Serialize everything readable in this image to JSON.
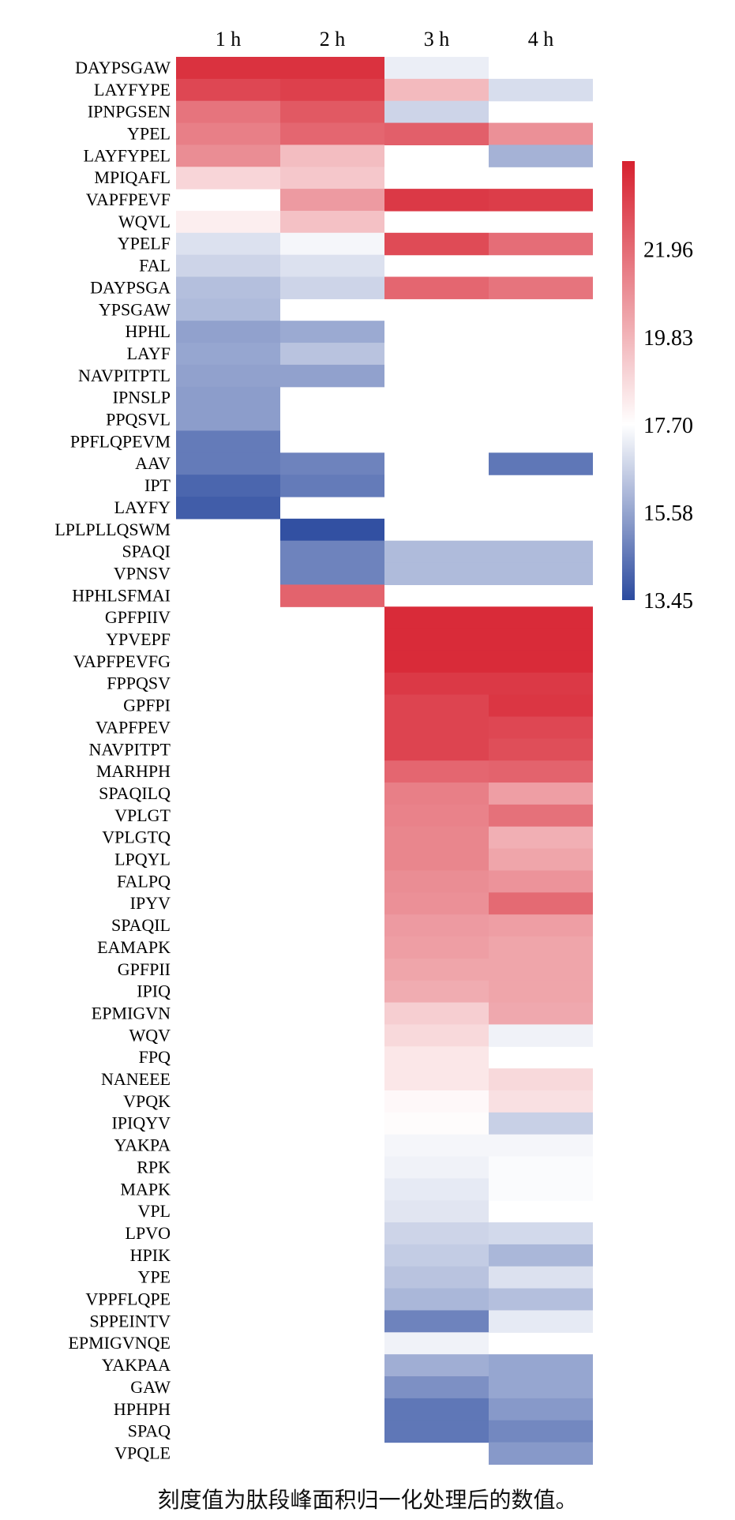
{
  "chart_data": {
    "type": "heatmap",
    "columns": [
      "1 h",
      "2 h",
      "3 h",
      "4 h"
    ],
    "rows": [
      "DAYPSGAW",
      "LAYFYPE",
      "IPNPGSEN",
      "YPEL",
      "LAYFYPEL",
      "MPIQAFL",
      "VAPFPEVF",
      "WQVL",
      "YPELF",
      "FAL",
      "DAYPSGA",
      "YPSGAW",
      "HPHL",
      "LAYF",
      "NAVPITPTL",
      "IPNSLP",
      "PPQSVL",
      "PPFLQPEVM",
      "AAV",
      "IPT",
      "LAYFY",
      "LPLPLLQSWM",
      "SPAQI",
      "VPNSV",
      "HPHLSFMAI",
      "GPFPIIV",
      "YPVEPF",
      "VAPFPEVFG",
      "FPPQSV",
      "GPFPI",
      "VAPFPEV",
      "NAVPITPT",
      "MARHPH",
      "SPAQILQ",
      "VPLGT",
      "VPLGTQ",
      "LPQYL",
      "FALPQ",
      "IPYV",
      "SPAQIL",
      "EAMAPK",
      "GPFPII",
      "IPIQ",
      "EPMIGVN",
      "WQV",
      "FPQ",
      "NANEEE",
      "VPQK",
      "IPIQYV",
      "YAKPA",
      "RPK",
      "MAPK",
      "VPL",
      "LPVO",
      "HPIK",
      "YPE",
      "VPPFLQPE",
      "SPPEINTV",
      "EPMIGVNQE",
      "YAKPAA",
      "GAW",
      "HPHPH",
      "SPAQ",
      "VPQLE"
    ],
    "values": [
      [
        23.6,
        23.6,
        17.3,
        null
      ],
      [
        23.0,
        23.2,
        19.7,
        16.9
      ],
      [
        21.7,
        22.5,
        16.7,
        null
      ],
      [
        21.4,
        22.1,
        22.3,
        20.9
      ],
      [
        21.0,
        19.6,
        null,
        15.9
      ],
      [
        18.9,
        19.3,
        null,
        null
      ],
      [
        null,
        20.6,
        23.4,
        23.3
      ],
      [
        18.2,
        19.5,
        null,
        null
      ],
      [
        17.0,
        17.5,
        22.9,
        21.9
      ],
      [
        16.7,
        17.0,
        null,
        null
      ],
      [
        16.2,
        16.7,
        22.1,
        21.7
      ],
      [
        16.1,
        null,
        null,
        null
      ],
      [
        15.5,
        15.7,
        null,
        null
      ],
      [
        15.6,
        16.3,
        null,
        null
      ],
      [
        15.5,
        15.5,
        null,
        null
      ],
      [
        15.4,
        null,
        null,
        null
      ],
      [
        15.4,
        null,
        null,
        null
      ],
      [
        14.6,
        null,
        null,
        null
      ],
      [
        14.6,
        14.8,
        null,
        14.5
      ],
      [
        14.1,
        14.6,
        null,
        null
      ],
      [
        13.9,
        null,
        null,
        null
      ],
      [
        null,
        13.6,
        null,
        null
      ],
      [
        null,
        14.8,
        16.1,
        16.1
      ],
      [
        null,
        14.8,
        16.1,
        16.1
      ],
      [
        null,
        22.2,
        null,
        null
      ],
      [
        null,
        null,
        23.8,
        23.8
      ],
      [
        null,
        null,
        23.8,
        23.8
      ],
      [
        null,
        null,
        23.8,
        23.8
      ],
      [
        null,
        null,
        23.4,
        23.4
      ],
      [
        null,
        null,
        23.1,
        23.5
      ],
      [
        null,
        null,
        23.1,
        23.0
      ],
      [
        null,
        null,
        23.1,
        22.8
      ],
      [
        null,
        null,
        22.1,
        22.2
      ],
      [
        null,
        null,
        21.4,
        20.5
      ],
      [
        null,
        null,
        21.3,
        21.8
      ],
      [
        null,
        null,
        21.2,
        20.0
      ],
      [
        null,
        null,
        21.2,
        20.3
      ],
      [
        null,
        null,
        21.0,
        20.8
      ],
      [
        null,
        null,
        20.9,
        22.0
      ],
      [
        null,
        null,
        20.6,
        20.5
      ],
      [
        null,
        null,
        20.5,
        20.3
      ],
      [
        null,
        null,
        20.3,
        20.3
      ],
      [
        null,
        null,
        20.1,
        20.3
      ],
      [
        null,
        null,
        19.1,
        20.2
      ],
      [
        null,
        null,
        18.8,
        17.4
      ],
      [
        null,
        null,
        18.4,
        null
      ],
      [
        null,
        null,
        18.4,
        18.8
      ],
      [
        null,
        null,
        17.9,
        18.6
      ],
      [
        null,
        null,
        17.8,
        16.6
      ],
      [
        null,
        null,
        17.5,
        17.5
      ],
      [
        null,
        null,
        17.4,
        17.6
      ],
      [
        null,
        null,
        17.2,
        17.6
      ],
      [
        null,
        null,
        17.1,
        null
      ],
      [
        null,
        null,
        16.7,
        16.8
      ],
      [
        null,
        null,
        16.5,
        16.0
      ],
      [
        null,
        null,
        16.3,
        17.0
      ],
      [
        null,
        null,
        16.0,
        16.2
      ],
      [
        null,
        null,
        14.8,
        17.2
      ],
      [
        null,
        null,
        17.4,
        null
      ],
      [
        null,
        null,
        15.8,
        15.6
      ],
      [
        null,
        null,
        15.1,
        15.6
      ],
      [
        null,
        null,
        14.5,
        15.3
      ],
      [
        null,
        null,
        14.5,
        14.9
      ],
      [
        null,
        null,
        null,
        15.3
      ]
    ],
    "colorbar": {
      "min": 13.45,
      "max": 24.1,
      "ticks": [
        21.96,
        19.83,
        17.7,
        15.58,
        13.45
      ],
      "tick_labels": [
        "21.96",
        "19.83",
        "17.70",
        "15.58",
        "13.45"
      ],
      "colors": {
        "low": "#2b4a9f",
        "mid": "#ffffff",
        "high": "#d7212f"
      }
    },
    "caption": "刻度值为肽段峰面积归一化处理后的数值。"
  }
}
